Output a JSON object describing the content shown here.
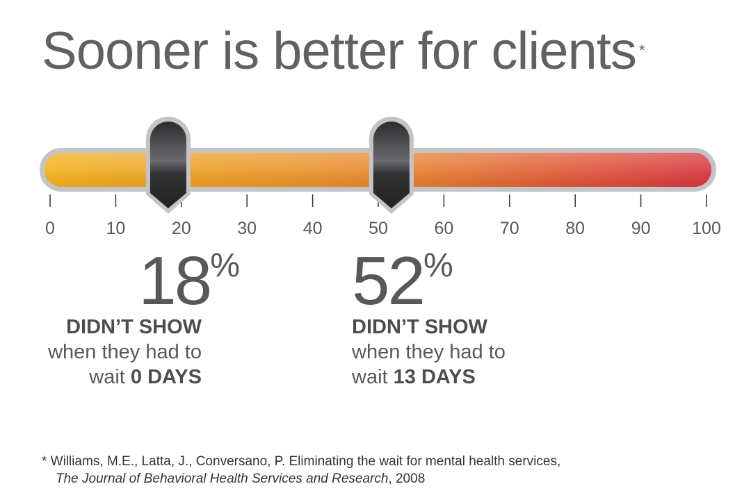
{
  "title": "Sooner is better for clients",
  "title_mark": "*",
  "chart_data": {
    "type": "gauge",
    "axis": {
      "min": 0,
      "max": 100,
      "ticks": [
        0,
        10,
        20,
        30,
        40,
        50,
        60,
        70,
        80,
        90,
        100
      ],
      "tick_labels": [
        "0",
        "10",
        "20",
        "30",
        "40",
        "50",
        "60",
        "70",
        "80",
        "90",
        "100"
      ]
    },
    "gradient": [
      "#f2b21e",
      "#e8892e",
      "#d9353f"
    ],
    "markers": [
      {
        "value": 18,
        "label": "18",
        "unit": "%"
      },
      {
        "value": 52,
        "label": "52",
        "unit": "%"
      }
    ]
  },
  "stats": [
    {
      "value": "18",
      "unit": "%",
      "headline": "DIDN’T SHOW",
      "line2": "when they had to",
      "wait": "wait ",
      "days": "0 DAYS"
    },
    {
      "value": "52",
      "unit": "%",
      "headline": "DIDN’T SHOW",
      "line2": "when they had to",
      "wait": "wait ",
      "days": "13 DAYS"
    }
  ],
  "footnote": {
    "line1": "* Williams, M.E., Latta, J., Conversano, P. Eliminating the wait for mental health services,",
    "journal": "The Journal of Behavioral Health Services and Research",
    "year": ", 2008"
  }
}
